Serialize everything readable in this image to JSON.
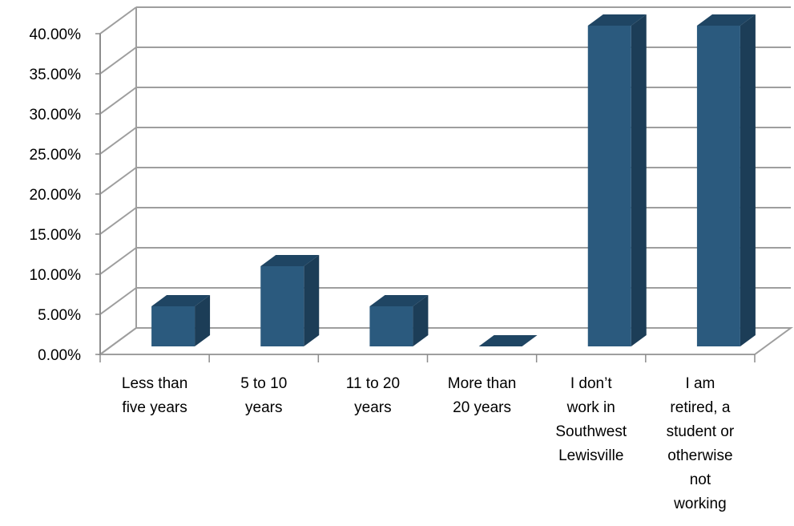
{
  "chart_data": {
    "type": "bar",
    "style": "3d-column",
    "categories": [
      [
        "Less than",
        "five years"
      ],
      [
        "5 to 10",
        "years"
      ],
      [
        "11 to 20",
        "years"
      ],
      [
        "More than",
        "20 years"
      ],
      [
        "I don’t",
        "work in",
        "Southwest",
        "Lewisville"
      ],
      [
        "I am",
        "retired, a",
        "student or",
        "otherwise",
        "not",
        "working"
      ]
    ],
    "values": [
      5,
      10,
      5,
      0,
      40,
      40
    ],
    "ylim": [
      0,
      40
    ],
    "ytick_step": 5,
    "ytick_labels": [
      "0.00%",
      "5.00%",
      "10.00%",
      "15.00%",
      "20.00%",
      "25.00%",
      "30.00%",
      "35.00%",
      "40.00%"
    ],
    "grid": true,
    "legend": "none",
    "colors": {
      "bar_front": "#2B5A7E",
      "bar_side": "#1C3D57",
      "bar_top": "#1F4563",
      "grid": "#9E9E9E",
      "axis": "#8C8C8C"
    }
  }
}
